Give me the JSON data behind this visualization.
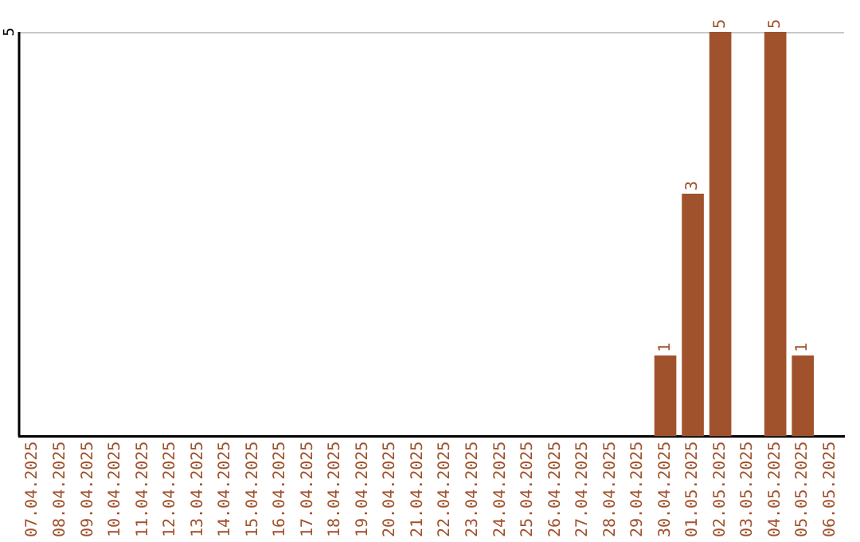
{
  "chart_data": {
    "type": "bar",
    "categories": [
      "07.04.2025",
      "08.04.2025",
      "09.04.2025",
      "10.04.2025",
      "11.04.2025",
      "12.04.2025",
      "13.04.2025",
      "14.04.2025",
      "15.04.2025",
      "16.04.2025",
      "17.04.2025",
      "18.04.2025",
      "19.04.2025",
      "20.04.2025",
      "21.04.2025",
      "22.04.2025",
      "23.04.2025",
      "24.04.2025",
      "25.04.2025",
      "26.04.2025",
      "27.04.2025",
      "28.04.2025",
      "29.04.2025",
      "30.04.2025",
      "01.05.2025",
      "02.05.2025",
      "03.05.2025",
      "04.05.2025",
      "05.05.2025",
      "06.05.2025"
    ],
    "values": [
      null,
      null,
      null,
      null,
      null,
      null,
      null,
      null,
      null,
      null,
      null,
      null,
      null,
      null,
      null,
      null,
      null,
      null,
      null,
      null,
      null,
      null,
      null,
      1,
      3,
      5,
      null,
      5,
      1,
      null
    ],
    "data_labels": true,
    "color": "#a0522d",
    "annotations": [
      "5"
    ],
    "legend": false
  }
}
